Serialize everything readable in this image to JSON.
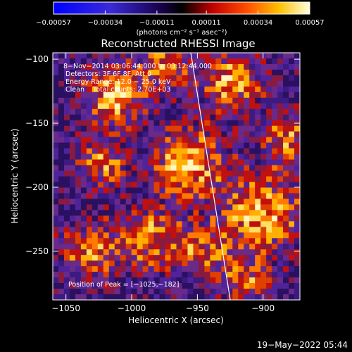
{
  "chart_data": {
    "type": "heatmap",
    "title": "Reconstructed RHESSI Image",
    "xlabel": "Heliocentric X (arcsec)",
    "ylabel": "Heliocentric Y (arcsec)",
    "xlim": [
      -1060,
      -872
    ],
    "ylim": [
      -288,
      -95
    ],
    "x_ticks": [
      -1050,
      -1000,
      -950,
      -900
    ],
    "x_tick_labels": [
      "−1050",
      "−1000",
      "−950",
      "−900"
    ],
    "y_ticks": [
      -100,
      -150,
      -200,
      -250
    ],
    "y_tick_labels": [
      "−100",
      "−150",
      "−200",
      "−250"
    ],
    "colorbar": {
      "min": -0.00057,
      "max": 0.00057,
      "ticks": [
        -0.00057,
        -0.00034,
        -0.00011,
        0.00011,
        0.00034,
        0.00057
      ],
      "tick_labels": [
        "−0.00057",
        "−0.00034",
        "−0.00011",
        "0.00011",
        "0.00034",
        "0.00057"
      ],
      "units_label": "(photons cm⁻² s⁻¹ asec⁻²)"
    },
    "annotations": [
      "8−Nov−2014 03:06:44.000 to 03:12:44.000",
      "Detectors: 3F 6F 8F, Att 0",
      "Energy Range: 12.0 − 25.0 keV",
      "Clean    Total counts: 2.70E+03"
    ],
    "peak_label": "Position of Peak = [−1025,−182]",
    "peak": [
      -1025,
      -182
    ],
    "limb_line": [
      [
        -955,
        -95
      ],
      [
        -925,
        -288
      ]
    ],
    "grid": false,
    "colormap": "RHESSI red-yellow (blue-black-red-yellow-white)"
  },
  "footer": {
    "timestamp": "19−May−2022 05:44"
  }
}
